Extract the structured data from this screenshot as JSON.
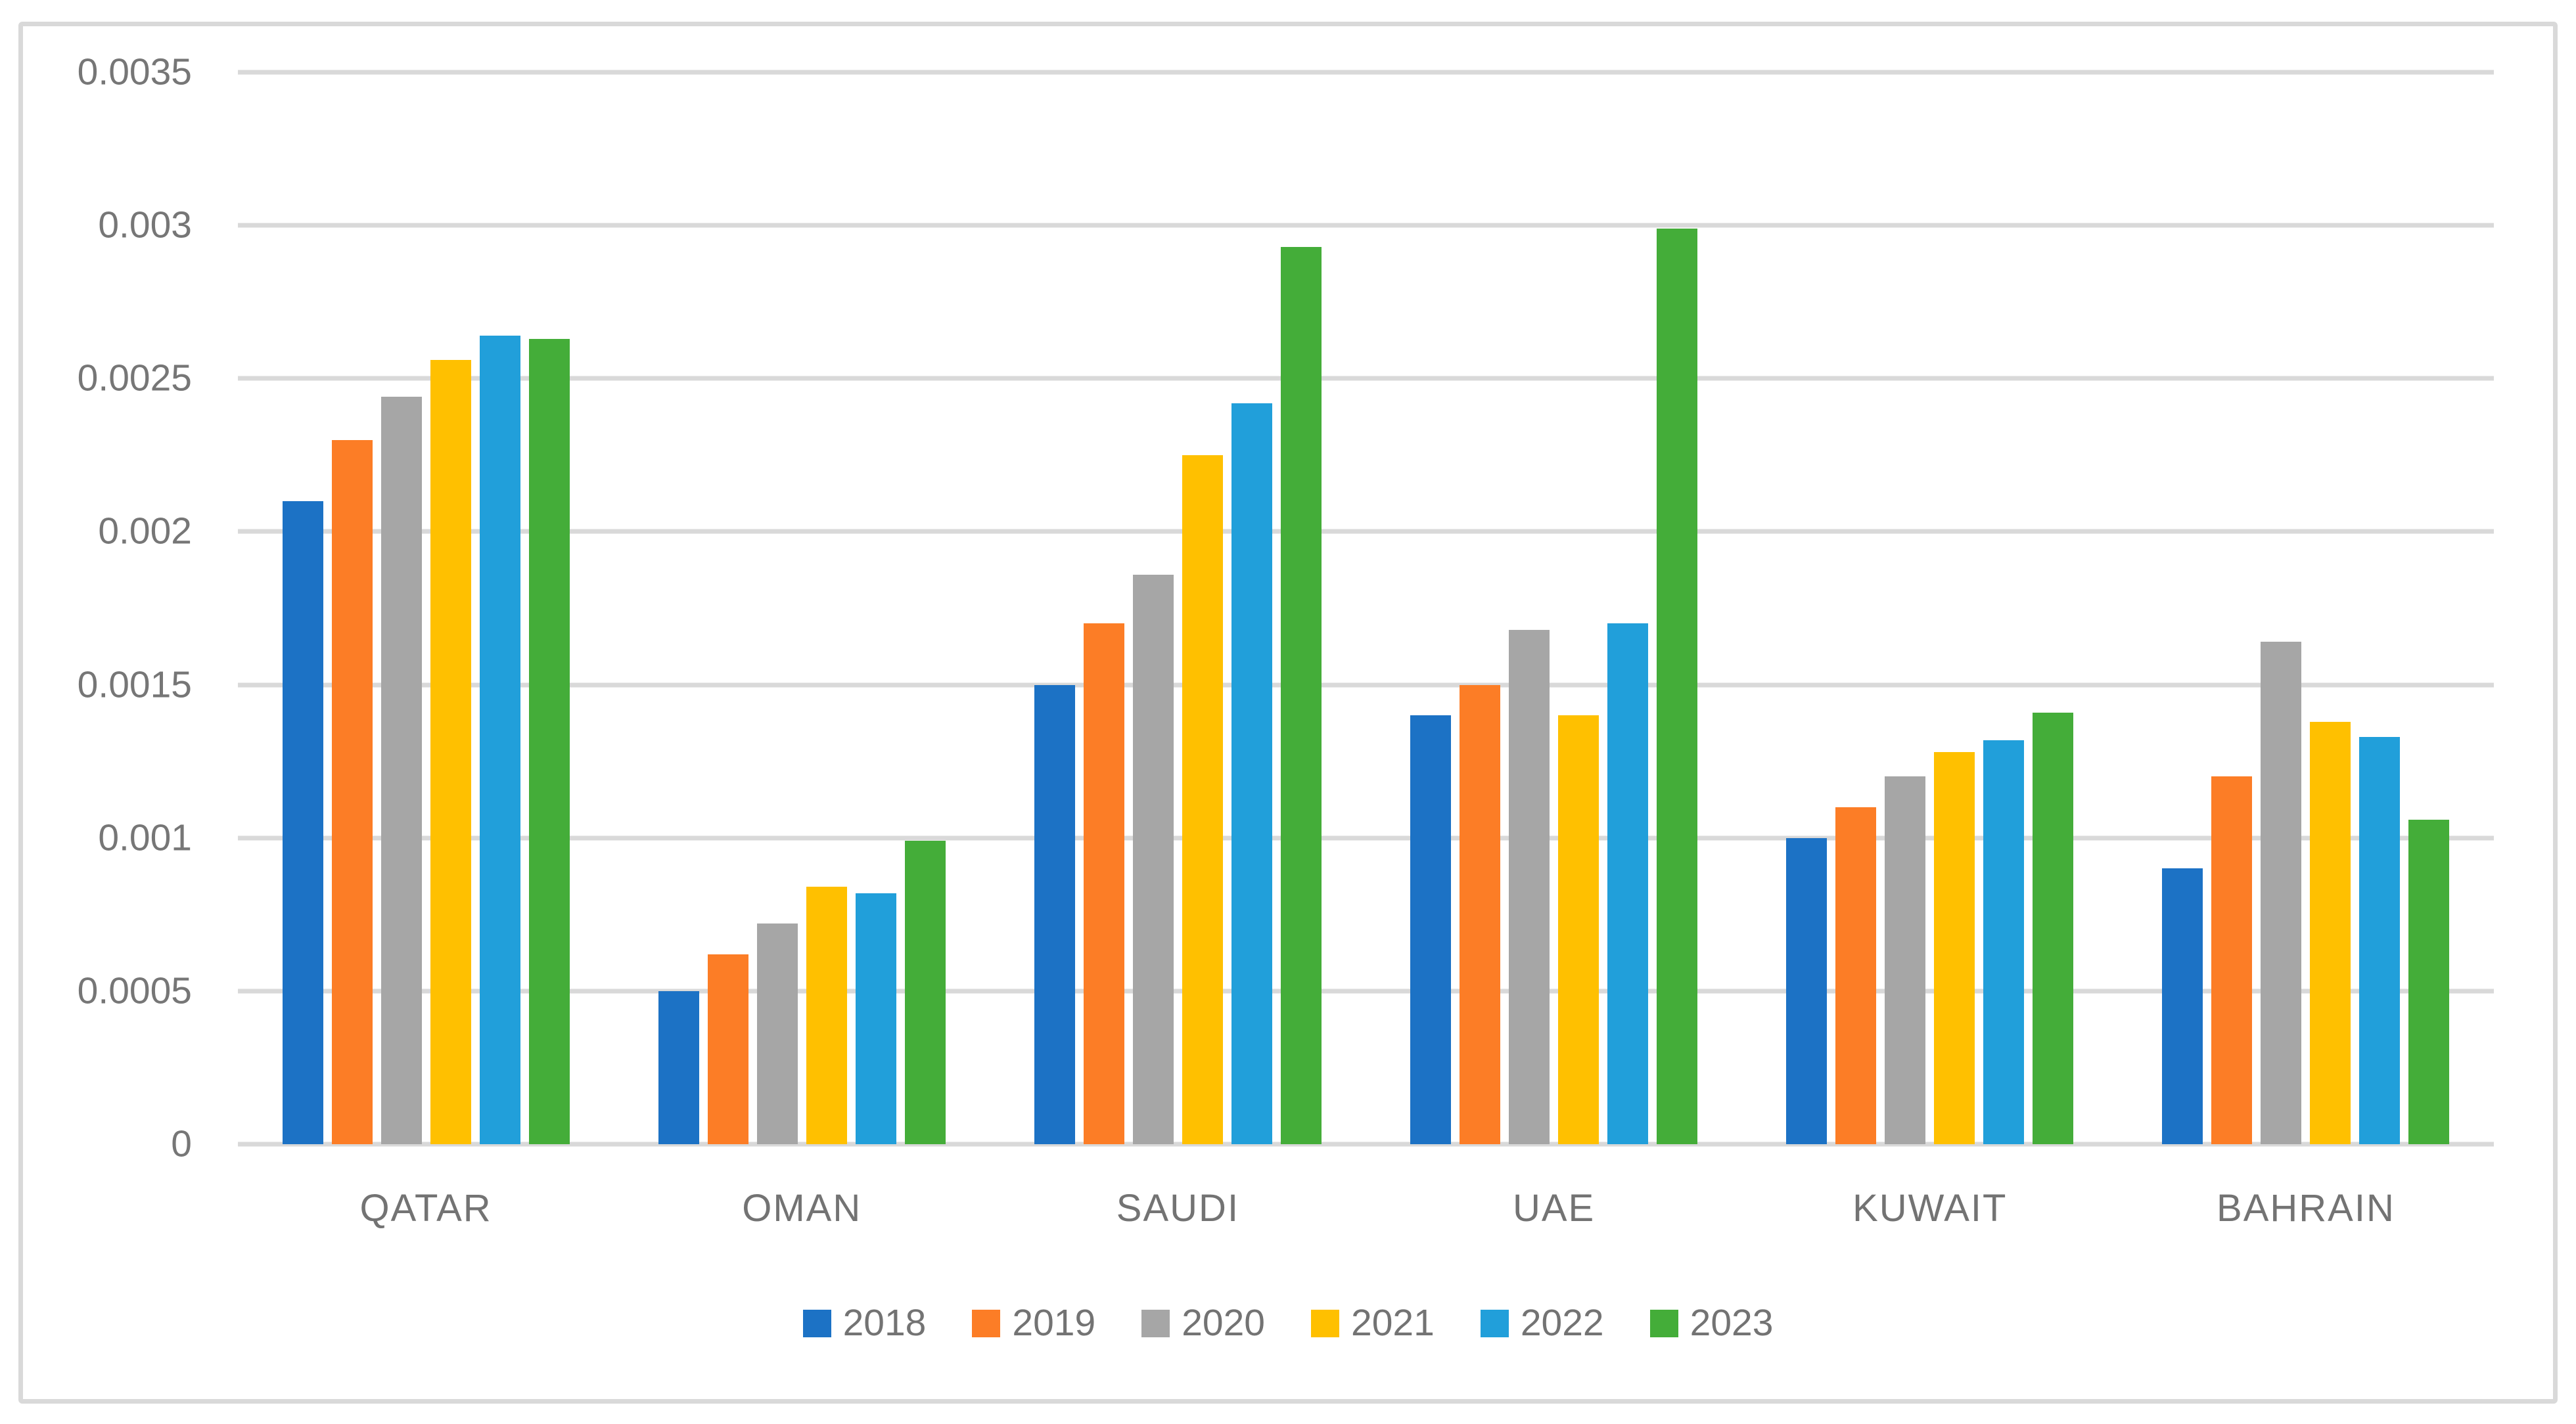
{
  "chart_data": {
    "type": "bar",
    "title": "",
    "categories": [
      "QATAR",
      "OMAN",
      "SAUDI",
      "UAE",
      "KUWAIT",
      "BAHRAIN"
    ],
    "series": [
      {
        "name": "2018",
        "color": "#1C72C5",
        "values": [
          0.0021,
          0.0005,
          0.0015,
          0.0014,
          0.001,
          0.0009
        ]
      },
      {
        "name": "2019",
        "color": "#FC7D26",
        "values": [
          0.0023,
          0.00062,
          0.0017,
          0.0015,
          0.0011,
          0.0012
        ]
      },
      {
        "name": "2020",
        "color": "#A6A6A6",
        "values": [
          0.00244,
          0.00072,
          0.00186,
          0.00168,
          0.0012,
          0.00164
        ]
      },
      {
        "name": "2021",
        "color": "#FFC000",
        "values": [
          0.00256,
          0.00084,
          0.00225,
          0.0014,
          0.00128,
          0.00138
        ]
      },
      {
        "name": "2022",
        "color": "#219FDA",
        "values": [
          0.00264,
          0.00082,
          0.00242,
          0.0017,
          0.00132,
          0.00133
        ]
      },
      {
        "name": "2023",
        "color": "#44AD39",
        "values": [
          0.00263,
          0.00099,
          0.00293,
          0.00299,
          0.00141,
          0.00106
        ]
      }
    ],
    "ylim": [
      0,
      0.0035
    ],
    "y_ticks": [
      {
        "value": 0,
        "label": "0"
      },
      {
        "value": 0.0005,
        "label": "0.0005"
      },
      {
        "value": 0.001,
        "label": "0.001"
      },
      {
        "value": 0.0015,
        "label": "0.0015"
      },
      {
        "value": 0.002,
        "label": "0.002"
      },
      {
        "value": 0.0025,
        "label": "0.0025"
      },
      {
        "value": 0.003,
        "label": "0.003"
      },
      {
        "value": 0.0035,
        "label": "0.0035"
      }
    ],
    "grid": true,
    "legend_position": "bottom",
    "xlabel": "",
    "ylabel": ""
  },
  "styles": {
    "grid_color": "#D9D9D9",
    "frame_color": "#D9D9D9",
    "text_color": "#737373",
    "background": "#FFFFFF"
  }
}
